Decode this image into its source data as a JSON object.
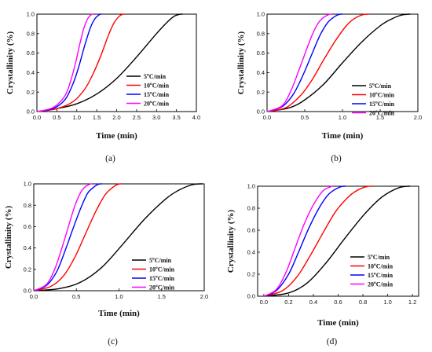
{
  "chart_data": [
    {
      "type": "line",
      "caption": "(a)",
      "xlabel": "Time (min)",
      "ylabel": "Crystallinity (%)",
      "xlim": [
        0,
        4
      ],
      "ylim": [
        0,
        1
      ],
      "xticks": [
        "0.0",
        "0.5",
        "1.0",
        "1.5",
        "2.0",
        "2.5",
        "3.0",
        "3.5",
        "4.0"
      ],
      "yticks": [
        "0.0",
        "0.2",
        "0.4",
        "0.6",
        "0.8",
        "1.0"
      ],
      "legend_position": "bottom-right",
      "series": [
        {
          "name": "5°C/min",
          "label_main": "5",
          "label_sup": "o",
          "label_unit": "C/min",
          "color": "#000000",
          "x": [
            0,
            0.5,
            1.0,
            1.5,
            2.0,
            2.5,
            3.0,
            3.3,
            3.45,
            3.6,
            3.65
          ],
          "y": [
            0,
            0.03,
            0.08,
            0.18,
            0.34,
            0.56,
            0.8,
            0.93,
            0.98,
            1.0,
            1.0
          ]
        },
        {
          "name": "10°C/min",
          "label_main": "10",
          "label_sup": "o",
          "label_unit": "C/min",
          "color": "#ff0000",
          "x": [
            0,
            0.5,
            0.9,
            1.2,
            1.4,
            1.6,
            1.8,
            1.95,
            2.1,
            2.2,
            2.22
          ],
          "y": [
            0,
            0.03,
            0.1,
            0.23,
            0.38,
            0.57,
            0.79,
            0.92,
            0.99,
            1.0,
            1.0
          ]
        },
        {
          "name": "15°C/min",
          "label_main": "15",
          "label_sup": "o",
          "label_unit": "C/min",
          "color": "#0000ff",
          "x": [
            0,
            0.4,
            0.7,
            0.9,
            1.05,
            1.2,
            1.35,
            1.45,
            1.55,
            1.6,
            1.62
          ],
          "y": [
            0,
            0.03,
            0.12,
            0.28,
            0.46,
            0.68,
            0.87,
            0.95,
            0.99,
            1.0,
            1.0
          ]
        },
        {
          "name": "20°C/min",
          "label_main": "20",
          "label_sup": "o",
          "label_unit": "C/min",
          "color": "#ff00ff",
          "x": [
            0,
            0.4,
            0.7,
            0.85,
            0.97,
            1.08,
            1.18,
            1.27,
            1.35,
            1.4,
            1.43
          ],
          "y": [
            0,
            0.04,
            0.16,
            0.32,
            0.5,
            0.7,
            0.86,
            0.95,
            0.99,
            1.0,
            1.0
          ]
        }
      ]
    },
    {
      "type": "line",
      "caption": "(b)",
      "xlabel": "Time (min)",
      "ylabel": "Crystallinity (%)",
      "xlim": [
        0,
        2
      ],
      "ylim": [
        0,
        1
      ],
      "xticks": [
        "0.0",
        "0.5",
        "1.0",
        "1.5",
        "2.0"
      ],
      "yticks": [
        "0.0",
        "0.2",
        "0.4",
        "0.6",
        "0.8",
        "1.0"
      ],
      "legend_position": "bottom-right",
      "series": [
        {
          "name": "5°C/min",
          "label_main": "5",
          "label_sup": "o",
          "label_unit": "C/min",
          "color": "#000000",
          "x": [
            0,
            0.3,
            0.5,
            0.75,
            1.0,
            1.25,
            1.5,
            1.65,
            1.78,
            1.88,
            1.9
          ],
          "y": [
            0,
            0.04,
            0.12,
            0.28,
            0.5,
            0.71,
            0.88,
            0.95,
            0.99,
            1.0,
            1.0
          ]
        },
        {
          "name": "10°C/min",
          "label_main": "10",
          "label_sup": "o",
          "label_unit": "C/min",
          "color": "#ff0000",
          "x": [
            0,
            0.25,
            0.45,
            0.6,
            0.75,
            0.9,
            1.05,
            1.15,
            1.25,
            1.33,
            1.35
          ],
          "y": [
            0,
            0.04,
            0.17,
            0.33,
            0.53,
            0.72,
            0.88,
            0.95,
            0.99,
            1.0,
            1.0
          ]
        },
        {
          "name": "15°C/min",
          "label_main": "15",
          "label_sup": "o",
          "label_unit": "C/min",
          "color": "#0000ff",
          "x": [
            0,
            0.2,
            0.35,
            0.48,
            0.6,
            0.7,
            0.8,
            0.87,
            0.93,
            0.98,
            1.0
          ],
          "y": [
            0,
            0.05,
            0.18,
            0.38,
            0.6,
            0.78,
            0.91,
            0.96,
            0.99,
            1.0,
            1.0
          ]
        },
        {
          "name": "20°C/min",
          "label_main": "20",
          "label_sup": "o",
          "label_unit": "C/min",
          "color": "#ff00ff",
          "x": [
            0,
            0.2,
            0.32,
            0.42,
            0.52,
            0.6,
            0.68,
            0.74,
            0.8,
            0.84,
            0.86
          ],
          "y": [
            0,
            0.06,
            0.22,
            0.42,
            0.63,
            0.79,
            0.91,
            0.96,
            0.99,
            1.0,
            1.0
          ]
        }
      ]
    },
    {
      "type": "line",
      "caption": "(c)",
      "xlabel": "Time (min)",
      "ylabel": "Crystallinity (%)",
      "xlim": [
        0,
        2
      ],
      "ylim": [
        0,
        1
      ],
      "xticks": [
        "0.0",
        "0.5",
        "1.0",
        "1.5",
        "2.0"
      ],
      "yticks": [
        "0.0",
        "0.2",
        "0.4",
        "0.6",
        "0.8",
        "1.0"
      ],
      "legend_position": "bottom-right",
      "series": [
        {
          "name": "5°C/min",
          "label_main": "5",
          "label_sup": "o",
          "label_unit": "C/min",
          "color": "#000000",
          "x": [
            0,
            0.3,
            0.55,
            0.8,
            1.05,
            1.3,
            1.55,
            1.7,
            1.85,
            1.95,
            1.98
          ],
          "y": [
            0,
            0.02,
            0.08,
            0.22,
            0.44,
            0.67,
            0.86,
            0.94,
            0.99,
            1.0,
            1.0
          ]
        },
        {
          "name": "10°C/min",
          "label_main": "10",
          "label_sup": "o",
          "label_unit": "C/min",
          "color": "#ff0000",
          "x": [
            0,
            0.2,
            0.35,
            0.48,
            0.6,
            0.72,
            0.83,
            0.9,
            0.97,
            1.01,
            1.03
          ],
          "y": [
            0,
            0.04,
            0.14,
            0.31,
            0.52,
            0.73,
            0.89,
            0.95,
            0.99,
            1.0,
            1.0
          ]
        },
        {
          "name": "15°C/min",
          "label_main": "15",
          "label_sup": "o",
          "label_unit": "C/min",
          "color": "#0000ff",
          "x": [
            0,
            0.15,
            0.27,
            0.37,
            0.46,
            0.55,
            0.63,
            0.69,
            0.74,
            0.78,
            0.8
          ],
          "y": [
            0,
            0.05,
            0.18,
            0.38,
            0.58,
            0.77,
            0.91,
            0.96,
            0.99,
            1.0,
            1.0
          ]
        },
        {
          "name": "20°C/min",
          "label_main": "20",
          "label_sup": "o",
          "label_unit": "C/min",
          "color": "#ff00ff",
          "x": [
            0,
            0.15,
            0.25,
            0.33,
            0.41,
            0.48,
            0.55,
            0.6,
            0.64,
            0.67,
            0.69
          ],
          "y": [
            0,
            0.06,
            0.21,
            0.4,
            0.61,
            0.79,
            0.92,
            0.97,
            0.99,
            1.0,
            1.0
          ]
        }
      ]
    },
    {
      "type": "line",
      "caption": "(d)",
      "xlabel": "Time (min)",
      "ylabel": "Crystallinity (%)",
      "xlim": [
        -0.05,
        1.25
      ],
      "ylim": [
        0,
        1
      ],
      "xticks": [
        "0.0",
        "0.2",
        "0.4",
        "0.6",
        "0.8",
        "1.0",
        "1.2"
      ],
      "yticks": [
        "0.0",
        "0.2",
        "0.4",
        "0.6",
        "0.8",
        "1.0"
      ],
      "legend_position": "bottom-right",
      "series": [
        {
          "name": "5°C/min",
          "label_main": "5",
          "label_sup": "o",
          "label_unit": "C/min",
          "color": "#000000",
          "x": [
            0,
            0.2,
            0.35,
            0.5,
            0.65,
            0.8,
            0.93,
            1.02,
            1.1,
            1.16,
            1.18
          ],
          "y": [
            0,
            0.03,
            0.12,
            0.3,
            0.52,
            0.73,
            0.88,
            0.95,
            0.99,
            1.0,
            1.0
          ]
        },
        {
          "name": "10°C/min",
          "label_main": "10",
          "label_sup": "o",
          "label_unit": "C/min",
          "color": "#ff0000",
          "x": [
            0,
            0.15,
            0.27,
            0.38,
            0.48,
            0.58,
            0.68,
            0.75,
            0.81,
            0.86,
            0.88
          ],
          "y": [
            0,
            0.05,
            0.18,
            0.38,
            0.58,
            0.77,
            0.9,
            0.96,
            0.99,
            1.0,
            1.0
          ]
        },
        {
          "name": "15°C/min",
          "label_main": "15",
          "label_sup": "o",
          "label_unit": "C/min",
          "color": "#0000ff",
          "x": [
            0,
            0.1,
            0.2,
            0.28,
            0.36,
            0.44,
            0.51,
            0.56,
            0.61,
            0.64,
            0.66
          ],
          "y": [
            0,
            0.05,
            0.2,
            0.4,
            0.61,
            0.79,
            0.91,
            0.96,
            0.99,
            1.0,
            1.0
          ]
        },
        {
          "name": "20°C/min",
          "label_main": "20",
          "label_sup": "o",
          "label_unit": "C/min",
          "color": "#ff00ff",
          "x": [
            0,
            0.1,
            0.18,
            0.25,
            0.32,
            0.39,
            0.45,
            0.49,
            0.53,
            0.55,
            0.56
          ],
          "y": [
            0,
            0.06,
            0.22,
            0.43,
            0.64,
            0.81,
            0.92,
            0.97,
            0.99,
            1.0,
            1.0
          ]
        }
      ]
    }
  ]
}
